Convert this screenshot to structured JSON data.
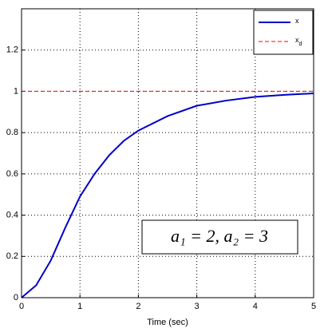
{
  "chart_data": {
    "type": "line",
    "xlabel": "Time (sec)",
    "xlim": [
      0,
      5
    ],
    "xticks": [
      0,
      1,
      2,
      3,
      4,
      5
    ],
    "ylim": [
      0,
      1.4
    ],
    "yticks": [
      0,
      0.2,
      0.4,
      0.6,
      0.8,
      1,
      1.2
    ],
    "grid": true,
    "legend": "upper right",
    "annotation": "a₁ = 2, a₂ = 3",
    "series": [
      {
        "name": "x",
        "color": "#0000c8",
        "style": "solid",
        "x": [
          0,
          0.25,
          0.5,
          0.75,
          1,
          1.25,
          1.5,
          1.75,
          2,
          2.5,
          3,
          3.5,
          4,
          4.5,
          5
        ],
        "values": [
          0,
          0.06,
          0.18,
          0.34,
          0.49,
          0.6,
          0.69,
          0.76,
          0.81,
          0.88,
          0.93,
          0.955,
          0.973,
          0.983,
          0.99
        ]
      },
      {
        "name": "x",
        "name_sub": "d",
        "color": "#ff0000",
        "style": "dashed",
        "x": [
          0,
          5
        ],
        "values": [
          1,
          1
        ]
      }
    ]
  }
}
